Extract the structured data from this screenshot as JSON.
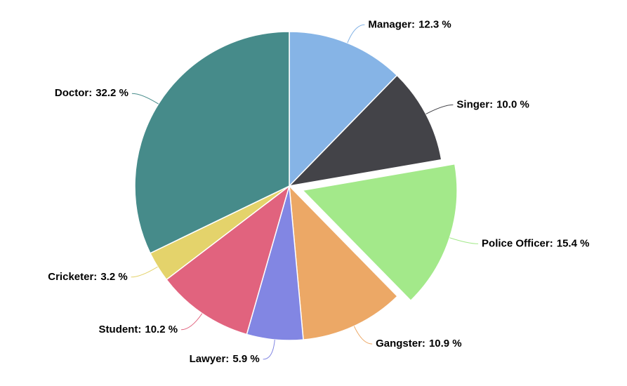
{
  "chart_data": {
    "type": "pie",
    "categories": [
      "Manager:",
      "Singer:",
      "Police Officer:",
      "Gangster:",
      "Lawyer:",
      "Student:",
      "Cricketer:",
      "Doctor:"
    ],
    "values": [
      12.3,
      10.0,
      15.4,
      10.9,
      5.9,
      10.2,
      3.2,
      32.2
    ],
    "value_labels": [
      "12.3 %",
      "10.0 %",
      "15.4 %",
      "10.9 %",
      "5.9 %",
      "10.2 %",
      "3.2 %",
      "32.2 %"
    ],
    "colors": [
      "#86b4e6",
      "#434348",
      "#a3e98a",
      "#eca866",
      "#8286e3",
      "#e1637e",
      "#e4d36b",
      "#468b8a"
    ],
    "sliced": [
      2
    ]
  }
}
